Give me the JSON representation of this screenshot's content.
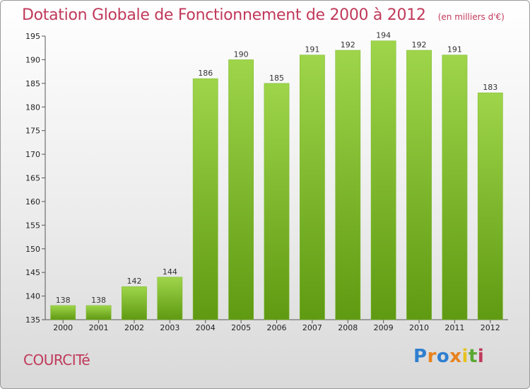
{
  "title": "Dotation Globale de Fonctionnement de 2000 à 2012",
  "unit_label": "(en milliers d'€)",
  "commune": "COURCITé",
  "brand": {
    "letters": [
      "P",
      "r",
      "o",
      "x",
      "i",
      "t",
      "i"
    ],
    "colors": [
      "#2f7fd0",
      "#e8821e",
      "#2f7fd0",
      "#e8821e",
      "#e8c21e",
      "#5aa832",
      "#c0395a"
    ]
  },
  "colors": {
    "title": "#c0395a",
    "bar_light": "#9ed54a",
    "bar_dark": "#5f9a12",
    "bar_stroke": "#7cb830"
  },
  "chart_data": {
    "type": "bar",
    "categories": [
      "2000",
      "2001",
      "2002",
      "2003",
      "2004",
      "2005",
      "2006",
      "2007",
      "2008",
      "2009",
      "2010",
      "2011",
      "2012"
    ],
    "values": [
      138,
      138,
      142,
      144,
      186,
      190,
      185,
      191,
      192,
      194,
      192,
      191,
      183
    ],
    "data_labels": [
      "138",
      "138",
      "142",
      "144",
      "186",
      "190",
      "185",
      "191",
      "192",
      "194",
      "192",
      "191",
      "183"
    ],
    "ylim": [
      135,
      195
    ],
    "yticks": [
      135,
      140,
      145,
      150,
      155,
      160,
      165,
      170,
      175,
      180,
      185,
      190,
      195
    ],
    "ytick_labels": [
      "135",
      "140",
      "145",
      "150",
      "155",
      "160",
      "165",
      "170",
      "175",
      "180",
      "185",
      "190",
      "195"
    ],
    "grid": false,
    "xlabel": "",
    "ylabel": ""
  }
}
